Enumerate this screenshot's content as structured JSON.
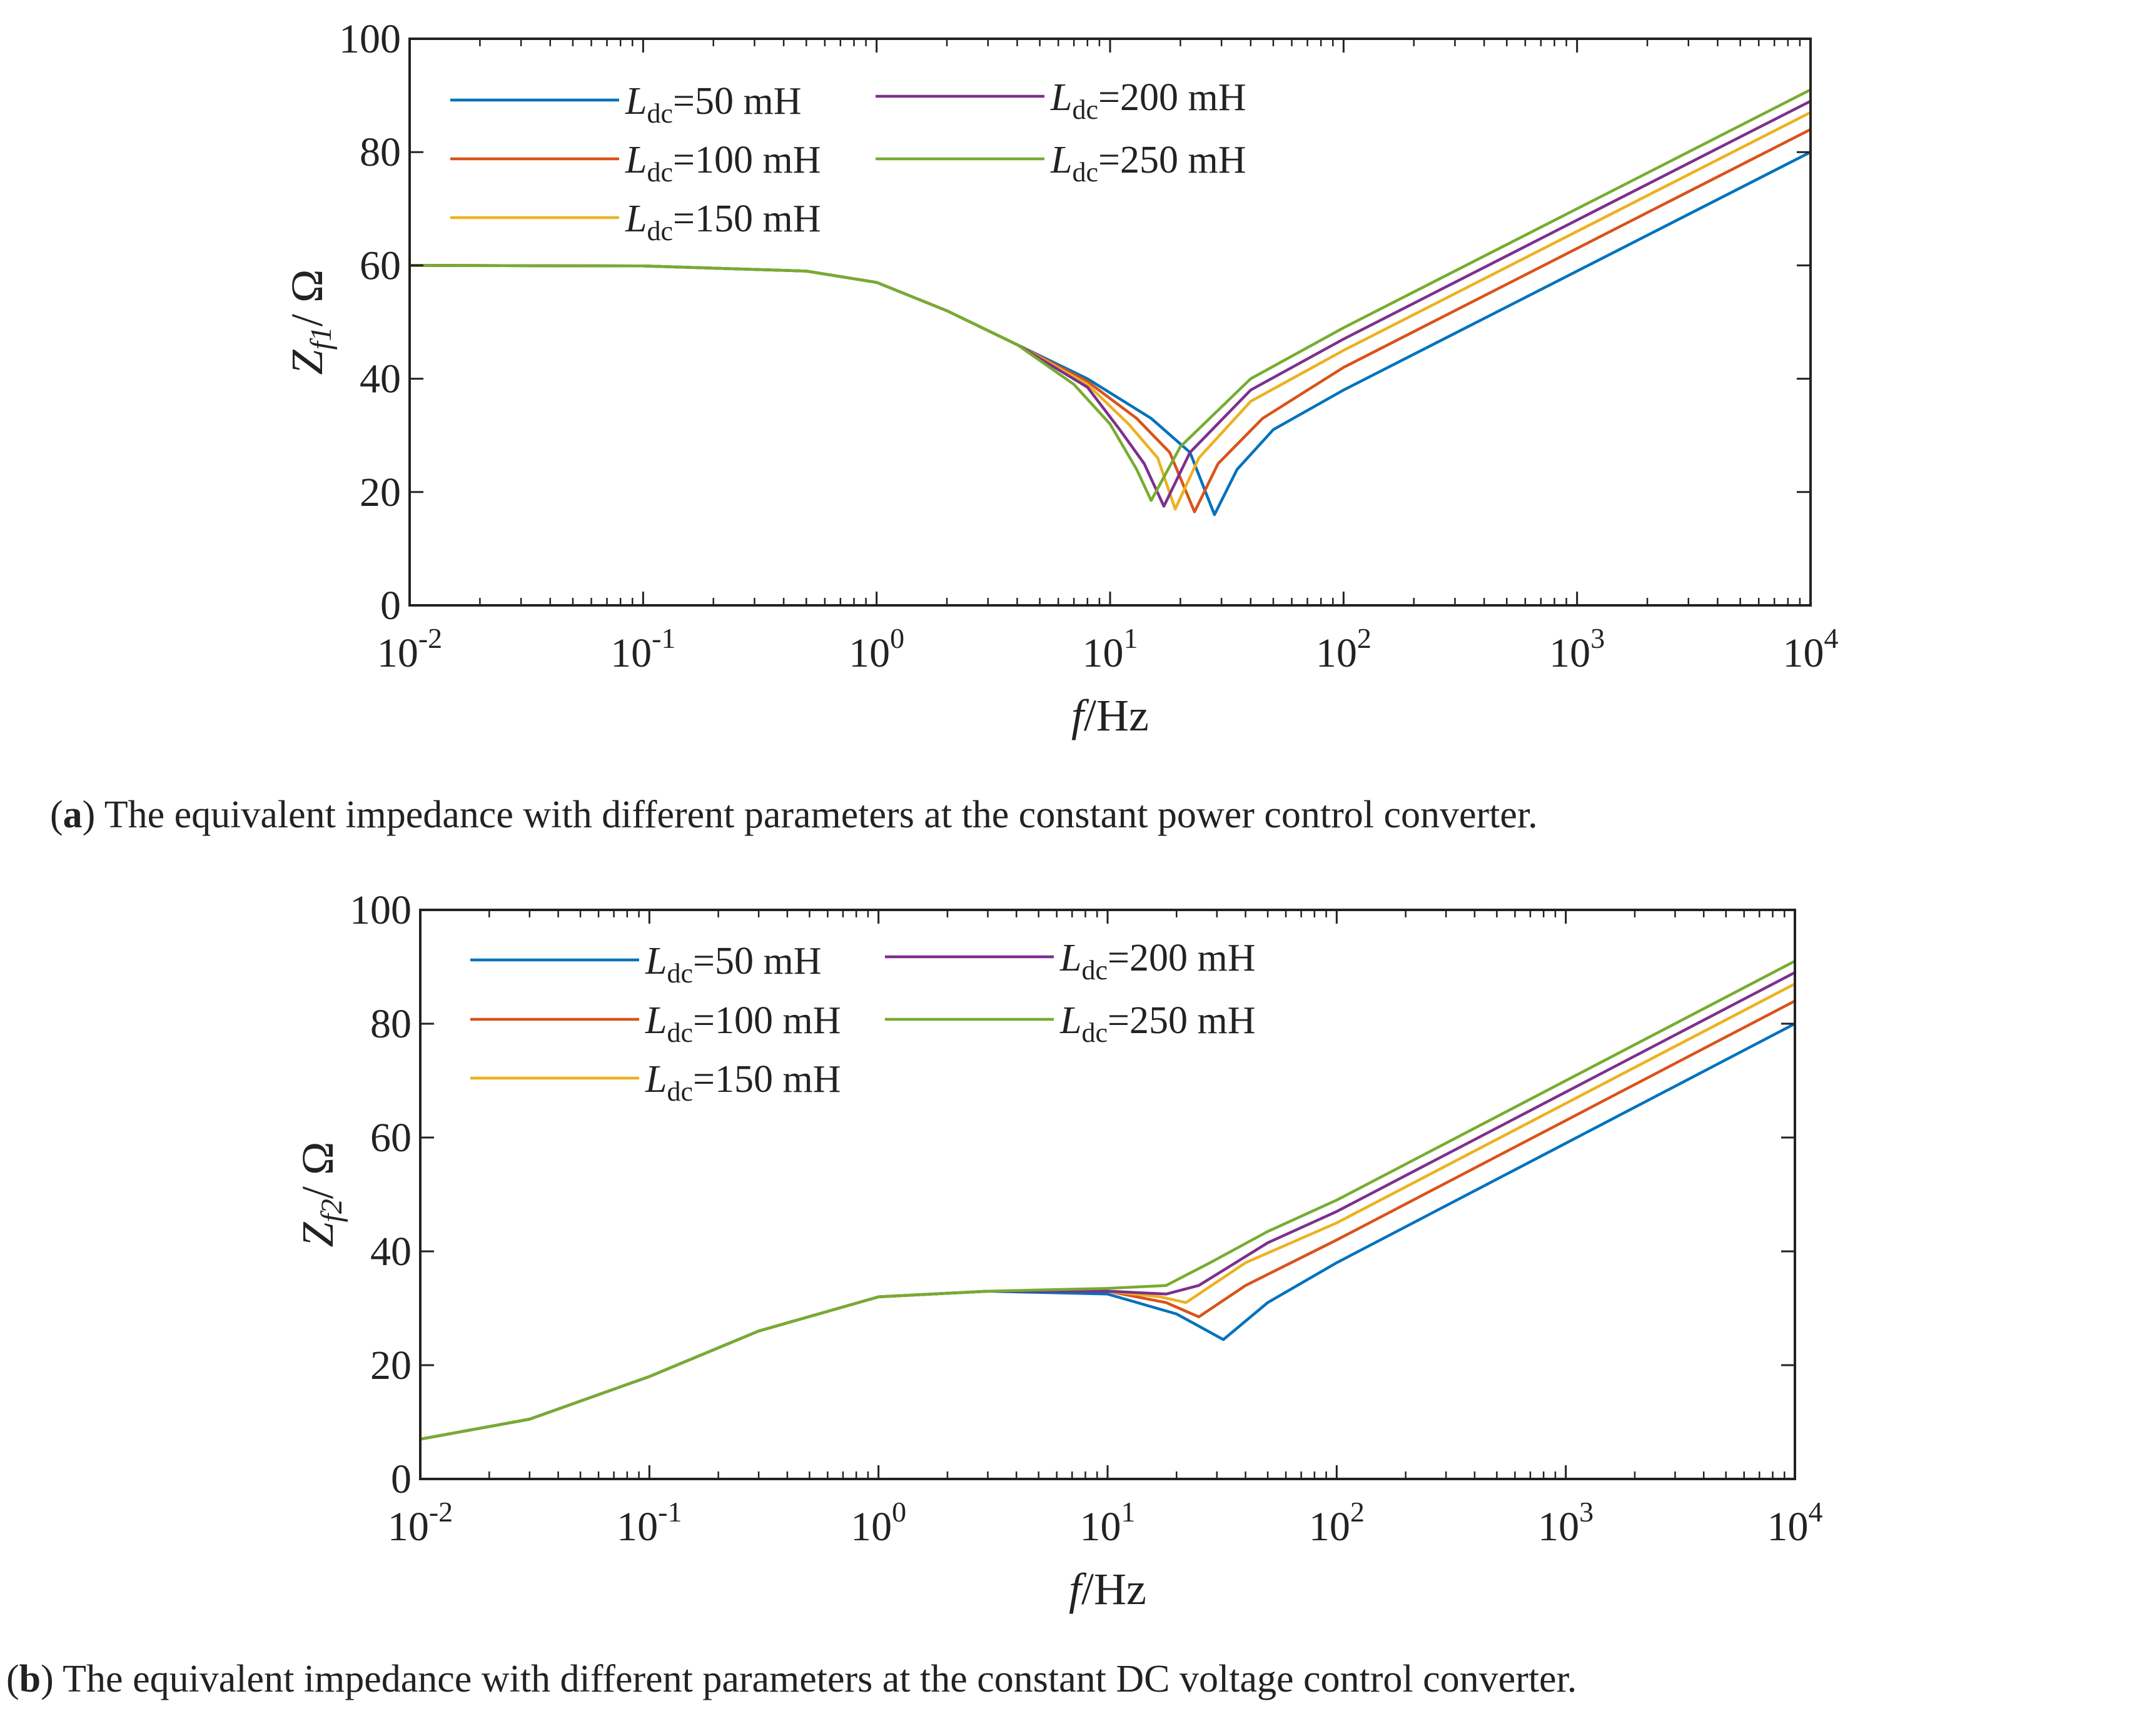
{
  "colors": {
    "series": [
      "#0072BD",
      "#D95319",
      "#EDB120",
      "#7E2F8E",
      "#77AC30"
    ],
    "axis": "#222222",
    "background": "#ffffff"
  },
  "captions": {
    "a": {
      "letter": "a",
      "text": " The equivalent impedance with different parameters at the constant power control converter."
    },
    "b": {
      "letter": "b",
      "text": " The equivalent impedance with different parameters at the constant DC voltage control converter."
    }
  },
  "chart_data": [
    {
      "id": "a",
      "type": "line",
      "xscale": "log",
      "xlim": [
        0.01,
        10000
      ],
      "ylim": [
        0,
        100
      ],
      "xlabel": {
        "italic": "f",
        "rest": "/Hz"
      },
      "ylabel": {
        "main": "Z",
        "sub": "f1",
        "rest": "/ Ω"
      },
      "xticks": [
        {
          "base": "10",
          "exp": "-2"
        },
        {
          "base": "10",
          "exp": "-1"
        },
        {
          "base": "10",
          "exp": "0"
        },
        {
          "base": "10",
          "exp": "1"
        },
        {
          "base": "10",
          "exp": "2"
        },
        {
          "base": "10",
          "exp": "3"
        },
        {
          "base": "10",
          "exp": "4"
        }
      ],
      "yticks": [
        "0",
        "20",
        "40",
        "60",
        "80",
        "100"
      ],
      "legend": [
        "=50 mH",
        "=100 mH",
        "=150 mH",
        "=200 mH",
        "=250 mH"
      ],
      "legend_symbol": {
        "main": "L",
        "sub": "dc"
      },
      "series": [
        {
          "name": "Ldc=50 mH",
          "points": [
            [
              0.01,
              60
            ],
            [
              0.1,
              59.9
            ],
            [
              0.5,
              59
            ],
            [
              1,
              57
            ],
            [
              2,
              52
            ],
            [
              4,
              46
            ],
            [
              8,
              40
            ],
            [
              15,
              33
            ],
            [
              22,
              27
            ],
            [
              28,
              16
            ],
            [
              35,
              24
            ],
            [
              50,
              31
            ],
            [
              100,
              38
            ],
            [
              1000,
              59
            ],
            [
              10000,
              80
            ]
          ]
        },
        {
          "name": "Ldc=100 mH",
          "points": [
            [
              0.01,
              60
            ],
            [
              0.1,
              59.9
            ],
            [
              0.5,
              59
            ],
            [
              1,
              57
            ],
            [
              2,
              52
            ],
            [
              4,
              46
            ],
            [
              8,
              39.5
            ],
            [
              13,
              33
            ],
            [
              18,
              27
            ],
            [
              23,
              16.5
            ],
            [
              29,
              25
            ],
            [
              45,
              33
            ],
            [
              100,
              42
            ],
            [
              1000,
              63
            ],
            [
              10000,
              84
            ]
          ]
        },
        {
          "name": "Ldc=150 mH",
          "points": [
            [
              0.01,
              60
            ],
            [
              0.1,
              59.9
            ],
            [
              0.5,
              59
            ],
            [
              1,
              57
            ],
            [
              2,
              52
            ],
            [
              4,
              46
            ],
            [
              8,
              39
            ],
            [
              12,
              32
            ],
            [
              16,
              26
            ],
            [
              19,
              17
            ],
            [
              24,
              26
            ],
            [
              40,
              36
            ],
            [
              100,
              45
            ],
            [
              1000,
              66
            ],
            [
              10000,
              87
            ]
          ]
        },
        {
          "name": "Ldc=200 mH",
          "points": [
            [
              0.01,
              60
            ],
            [
              0.1,
              59.9
            ],
            [
              0.5,
              59
            ],
            [
              1,
              57
            ],
            [
              2,
              52
            ],
            [
              4,
              46
            ],
            [
              8,
              38.5
            ],
            [
              11,
              31
            ],
            [
              14,
              25
            ],
            [
              17,
              17.5
            ],
            [
              22,
              27
            ],
            [
              40,
              38
            ],
            [
              100,
              47
            ],
            [
              1000,
              68
            ],
            [
              10000,
              89
            ]
          ]
        },
        {
          "name": "Ldc=250 mH",
          "points": [
            [
              0.01,
              60
            ],
            [
              0.1,
              59.9
            ],
            [
              0.5,
              59
            ],
            [
              1,
              57
            ],
            [
              2,
              52
            ],
            [
              4,
              46
            ],
            [
              7,
              39
            ],
            [
              10,
              32
            ],
            [
              13,
              24
            ],
            [
              15,
              18.5
            ],
            [
              20,
              28
            ],
            [
              40,
              40
            ],
            [
              100,
              49
            ],
            [
              1000,
              70
            ],
            [
              10000,
              91
            ]
          ]
        }
      ]
    },
    {
      "id": "b",
      "type": "line",
      "xscale": "log",
      "xlim": [
        0.01,
        10000
      ],
      "ylim": [
        0,
        100
      ],
      "xlabel": {
        "italic": "f",
        "rest": "/Hz"
      },
      "ylabel": {
        "main": "Z",
        "sub": "f2",
        "rest": "/ Ω"
      },
      "xticks": [
        {
          "base": "10",
          "exp": "-2"
        },
        {
          "base": "10",
          "exp": "-1"
        },
        {
          "base": "10",
          "exp": "0"
        },
        {
          "base": "10",
          "exp": "1"
        },
        {
          "base": "10",
          "exp": "2"
        },
        {
          "base": "10",
          "exp": "3"
        },
        {
          "base": "10",
          "exp": "4"
        }
      ],
      "yticks": [
        "0",
        "20",
        "40",
        "60",
        "80",
        "100"
      ],
      "legend": [
        "=50 mH",
        "=100 mH",
        "=150 mH",
        "=200 mH",
        "=250 mH"
      ],
      "legend_symbol": {
        "main": "L",
        "sub": "dc"
      },
      "series": [
        {
          "name": "Ldc=50 mH",
          "points": [
            [
              0.01,
              7
            ],
            [
              0.03,
              10.5
            ],
            [
              0.1,
              18
            ],
            [
              0.3,
              26
            ],
            [
              1,
              32
            ],
            [
              3,
              33
            ],
            [
              10,
              32.5
            ],
            [
              20,
              29
            ],
            [
              32,
              24.5
            ],
            [
              50,
              31
            ],
            [
              100,
              38
            ],
            [
              1000,
              59
            ],
            [
              10000,
              80
            ]
          ]
        },
        {
          "name": "Ldc=100 mH",
          "points": [
            [
              0.01,
              7
            ],
            [
              0.03,
              10.5
            ],
            [
              0.1,
              18
            ],
            [
              0.3,
              26
            ],
            [
              1,
              32
            ],
            [
              3,
              33
            ],
            [
              10,
              33
            ],
            [
              18,
              31
            ],
            [
              25,
              28.5
            ],
            [
              40,
              34
            ],
            [
              100,
              42
            ],
            [
              1000,
              63
            ],
            [
              10000,
              84
            ]
          ]
        },
        {
          "name": "Ldc=150 mH",
          "points": [
            [
              0.01,
              7
            ],
            [
              0.03,
              10.5
            ],
            [
              0.1,
              18
            ],
            [
              0.3,
              26
            ],
            [
              1,
              32
            ],
            [
              3,
              33
            ],
            [
              10,
              33
            ],
            [
              17,
              32
            ],
            [
              22,
              31
            ],
            [
              40,
              38
            ],
            [
              100,
              45
            ],
            [
              1000,
              66
            ],
            [
              10000,
              87
            ]
          ]
        },
        {
          "name": "Ldc=200 mH",
          "points": [
            [
              0.01,
              7
            ],
            [
              0.03,
              10.5
            ],
            [
              0.1,
              18
            ],
            [
              0.3,
              26
            ],
            [
              1,
              32
            ],
            [
              3,
              33
            ],
            [
              10,
              33
            ],
            [
              18,
              32.5
            ],
            [
              25,
              34
            ],
            [
              50,
              41.5
            ],
            [
              100,
              47
            ],
            [
              1000,
              68
            ],
            [
              10000,
              89
            ]
          ]
        },
        {
          "name": "Ldc=250 mH",
          "points": [
            [
              0.01,
              7
            ],
            [
              0.03,
              10.5
            ],
            [
              0.1,
              18
            ],
            [
              0.3,
              26
            ],
            [
              1,
              32
            ],
            [
              3,
              33
            ],
            [
              10,
              33.5
            ],
            [
              18,
              34
            ],
            [
              28,
              38
            ],
            [
              50,
              43.5
            ],
            [
              100,
              49
            ],
            [
              1000,
              70
            ],
            [
              10000,
              91
            ]
          ]
        }
      ]
    }
  ]
}
